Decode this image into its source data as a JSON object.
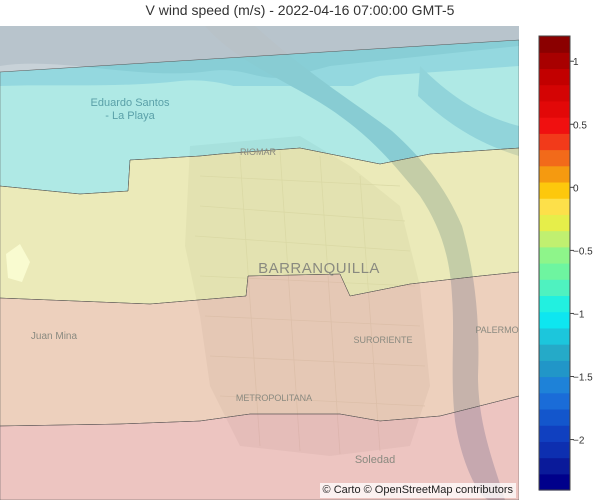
{
  "title": "V wind speed (m/s) - 2022-04-16 07:00:00 GMT-5",
  "map": {
    "places": [
      {
        "id": "eduardo-santos-line1",
        "text": "Eduardo Santos",
        "kind": "town"
      },
      {
        "id": "eduardo-santos-line2",
        "text": "- La Playa",
        "kind": "town"
      },
      {
        "id": "riomar",
        "text": "RIOMAR",
        "kind": "district"
      },
      {
        "id": "barranquilla",
        "text": "BARRANQUILLA",
        "kind": "city"
      },
      {
        "id": "juan-mina",
        "text": "Juan Mina",
        "kind": "town"
      },
      {
        "id": "suroriente",
        "text": "SURORIENTE",
        "kind": "district"
      },
      {
        "id": "palermo",
        "text": "PALERMO",
        "kind": "district"
      },
      {
        "id": "metropolitana",
        "text": "METROPOLITANA",
        "kind": "district"
      },
      {
        "id": "soledad",
        "text": "Soledad",
        "kind": "town"
      }
    ],
    "bands": [
      {
        "name": "band-north",
        "value": -0.9,
        "color": "#00eaf4"
      },
      {
        "name": "band-central",
        "value": -0.2,
        "color": "#e6f04b"
      },
      {
        "name": "band-south",
        "value": 0.45,
        "color": "#f08a5a"
      },
      {
        "name": "band-far-south",
        "value": 0.9,
        "color": "#f0606a"
      }
    ],
    "attribution": "© Carto © OpenStreetMap contributors"
  },
  "colorbar": {
    "range": [
      -2.4,
      1.2
    ],
    "ticks": [
      {
        "value": 1,
        "label": "1"
      },
      {
        "value": 0.5,
        "label": "0.5"
      },
      {
        "value": 0,
        "label": "0"
      },
      {
        "value": -0.5,
        "label": "−0.5"
      },
      {
        "value": -1,
        "label": "−1"
      },
      {
        "value": -1.5,
        "label": "−1.5"
      },
      {
        "value": -2,
        "label": "−2"
      }
    ],
    "colors": [
      "#00008b",
      "#0a1a9a",
      "#0d2fb0",
      "#1040c0",
      "#1356cc",
      "#1a6cd8",
      "#1e82d8",
      "#2196c8",
      "#25aac8",
      "#1cc6dc",
      "#0ee6f0",
      "#22f0e0",
      "#4ff2c0",
      "#6ef5a0",
      "#8ef58a",
      "#c0f070",
      "#e6ee4a",
      "#fde04a",
      "#fdc80c",
      "#f59a10",
      "#f26a1a",
      "#f23a1a",
      "#f01010",
      "#e20808",
      "#d40404",
      "#c20000",
      "#a80000",
      "#8b0000"
    ]
  }
}
